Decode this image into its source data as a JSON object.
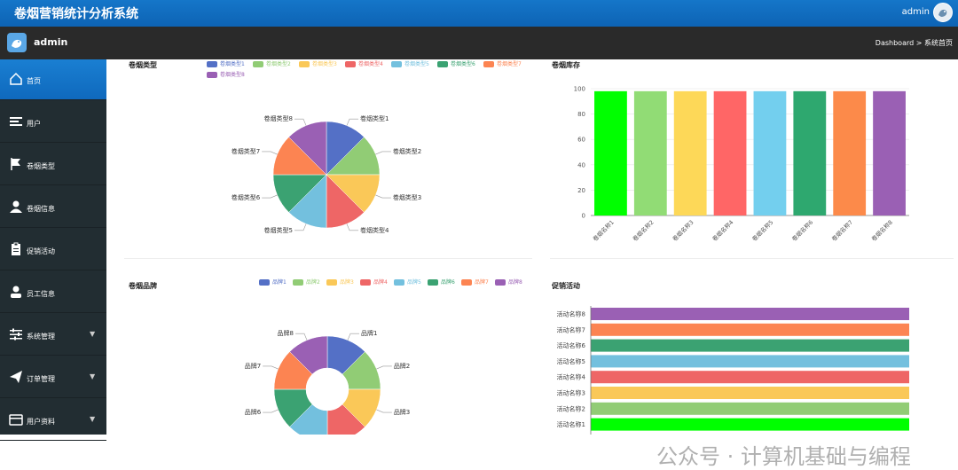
{
  "header": {
    "title": "卷烟营销统计分析系统",
    "user": "admin"
  },
  "subheader": {
    "user": "admin",
    "breadcrumb": "Dashboard > 系统首页"
  },
  "sidebar": {
    "items": [
      {
        "label": "首页",
        "icon": "home-icon",
        "expandable": false
      },
      {
        "label": "用户",
        "icon": "list-icon",
        "expandable": false
      },
      {
        "label": "卷烟类型",
        "icon": "flag-icon",
        "expandable": false
      },
      {
        "label": "卷烟信息",
        "icon": "person-icon",
        "expandable": false
      },
      {
        "label": "促销活动",
        "icon": "clipboard-icon",
        "expandable": false
      },
      {
        "label": "员工信息",
        "icon": "user-icon",
        "expandable": false
      },
      {
        "label": "系统管理",
        "icon": "sliders-icon",
        "expandable": true
      },
      {
        "label": "订单管理",
        "icon": "send-icon",
        "expandable": true
      },
      {
        "label": "用户资料",
        "icon": "card-icon",
        "expandable": true
      }
    ]
  },
  "watermark": "公众号 · 计算机基础与编程",
  "chart_data": [
    {
      "type": "pie",
      "title": "卷烟类型",
      "categories": [
        "卷烟类型1",
        "卷烟类型2",
        "卷烟类型3",
        "卷烟类型4",
        "卷烟类型5",
        "卷烟类型6",
        "卷烟类型7",
        "卷烟类型8"
      ],
      "values": [
        1,
        1,
        1,
        1,
        1,
        1,
        1,
        1
      ],
      "colors": [
        "#5470c6",
        "#91cc75",
        "#fac858",
        "#ee6666",
        "#73c0de",
        "#3ba272",
        "#fc8452",
        "#9a60b4"
      ]
    },
    {
      "type": "bar",
      "title": "卷烟库存",
      "categories": [
        "卷烟名称1",
        "卷烟名称2",
        "卷烟名称3",
        "卷烟名称4",
        "卷烟名称5",
        "卷烟名称6",
        "卷烟名称7",
        "卷烟名称8"
      ],
      "values": [
        98,
        98,
        98,
        98,
        98,
        98,
        98,
        98
      ],
      "yticks": [
        0,
        20,
        40,
        60,
        80,
        100
      ],
      "ylim": [
        0,
        100
      ],
      "colors": [
        "#00ff00",
        "#91dc75",
        "#fdd858",
        "#ff6666",
        "#73cfee",
        "#2ea86f",
        "#fc8a4a",
        "#9a60b4"
      ]
    },
    {
      "type": "pie",
      "title": "卷烟品牌",
      "donut": true,
      "categories": [
        "品牌1",
        "品牌2",
        "品牌3",
        "品牌4",
        "品牌5",
        "品牌6",
        "品牌7",
        "品牌8"
      ],
      "values": [
        1,
        1,
        1,
        1,
        1,
        1,
        1,
        1
      ],
      "colors": [
        "#5470c6",
        "#91cc75",
        "#fac858",
        "#ee6666",
        "#73c0de",
        "#3ba272",
        "#fc8452",
        "#9a60b4"
      ]
    },
    {
      "type": "bar",
      "orientation": "horizontal",
      "title": "促销活动",
      "categories": [
        "活动名称8",
        "活动名称7",
        "活动名称6",
        "活动名称5",
        "活动名称4",
        "活动名称3",
        "活动名称2",
        "活动名称1"
      ],
      "values": [
        100,
        100,
        100,
        100,
        100,
        100,
        100,
        100
      ],
      "colors": [
        "#9a60b4",
        "#fc8452",
        "#3ba272",
        "#73c0de",
        "#ee6666",
        "#fac858",
        "#91cc75",
        "#00ff00"
      ]
    }
  ]
}
